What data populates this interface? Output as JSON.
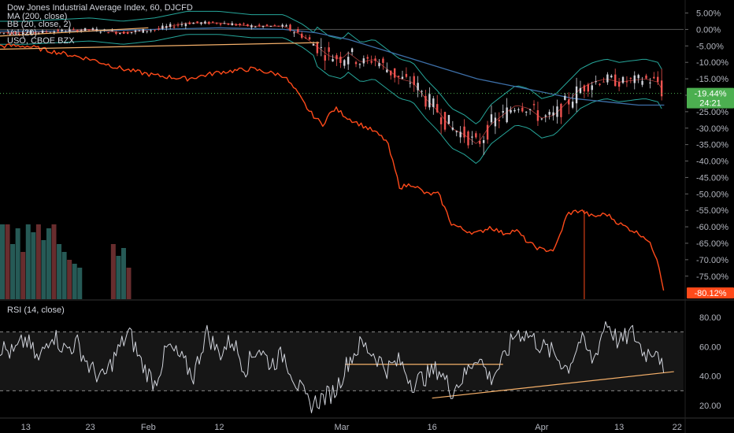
{
  "legend": {
    "title": "Dow Jones Industrial Average Index, 60, DJCFD",
    "ma": "MA (200, close)",
    "bb": "BB (20, close, 2)",
    "vol": "Vol (20)",
    "compare": "USO, CBOE BZX",
    "rsi": "RSI (14, close)"
  },
  "colors": {
    "background": "#000000",
    "up_candle": "#d1d4dc",
    "down_candle": "#ef5350",
    "ma": "#3d6fa8",
    "bollinger": "#26a69a",
    "uso": "#ff4a1a",
    "trendline": "#f5b06a",
    "rsi": "#d1d4dc",
    "dji_tag": "#4caf50",
    "uso_tag": "#ff4a1a"
  },
  "price_tags": {
    "dji_last": "-19.44%",
    "countdown": "24:21",
    "uso_last": "-80.12%"
  },
  "chart_data": [
    {
      "type": "line",
      "name": "price-comparison",
      "title": "Dow Jones Industrial Average Index, 60, DJCFD",
      "y_ticks": [
        "5.00%",
        "0.00%",
        "-5.00%",
        "-10.00%",
        "-15.00%",
        "-20.00%",
        "-25.00%",
        "-30.00%",
        "-35.00%",
        "-40.00%",
        "-45.00%",
        "-50.00%",
        "-55.00%",
        "-60.00%",
        "-65.00%",
        "-70.00%",
        "-75.00%"
      ],
      "y_values": [
        5,
        0,
        -5,
        -10,
        -15,
        -20,
        -25,
        -30,
        -35,
        -40,
        -45,
        -50,
        -55,
        -60,
        -65,
        -70,
        -75
      ],
      "ylim": [
        -82,
        8
      ],
      "x_ticks": [
        "13",
        "23",
        "Feb",
        "12",
        "Mar",
        "16",
        "Apr",
        "13",
        "22"
      ],
      "x_tick_days": [
        0,
        10,
        19,
        30,
        49,
        63,
        80,
        92,
        101
      ],
      "xlim": [
        -4,
        102
      ],
      "series": [
        {
          "name": "DJCFD",
          "x": [
            -4,
            0,
            5,
            10,
            15,
            20,
            25,
            30,
            35,
            40,
            43,
            45,
            47,
            49,
            50,
            52,
            54,
            56,
            58,
            60,
            62,
            64,
            66,
            68,
            70,
            72,
            74,
            76,
            78,
            80,
            82,
            84,
            86,
            88,
            90,
            92,
            94,
            96,
            98,
            99
          ],
          "values": [
            -1,
            -1,
            -0.5,
            0,
            -1,
            0,
            2,
            2,
            1,
            1,
            -2,
            -5,
            -8,
            -9,
            -7,
            -10,
            -9,
            -12,
            -15,
            -16,
            -21,
            -25,
            -30,
            -32,
            -35,
            -29,
            -26,
            -23,
            -24,
            -27,
            -26,
            -22,
            -18,
            -16,
            -15,
            -16,
            -15.5,
            -15,
            -16,
            -19.44
          ]
        },
        {
          "name": "USO",
          "x": [
            -4,
            0,
            5,
            10,
            15,
            20,
            25,
            30,
            35,
            40,
            42,
            44,
            46,
            47,
            48,
            50,
            52,
            54,
            56,
            58,
            60,
            62,
            64,
            66,
            68,
            70,
            72,
            74,
            76,
            78,
            80,
            82,
            84,
            86,
            88,
            90,
            92,
            94,
            96,
            97,
            98,
            99
          ],
          "values": [
            -5,
            -5,
            -7,
            -9,
            -12,
            -14,
            -15,
            -13,
            -12,
            -14,
            -19,
            -25,
            -29,
            -26,
            -24,
            -27,
            -29,
            -31,
            -34,
            -48,
            -47,
            -50,
            -50,
            -59,
            -61,
            -62,
            -60,
            -62,
            -61,
            -65,
            -67,
            -67,
            -56,
            -55,
            -57,
            -56,
            -59,
            -61,
            -63,
            -66,
            -70,
            -80.12
          ]
        },
        {
          "name": "MA (200, close)",
          "x": [
            -4,
            10,
            20,
            30,
            40,
            45,
            50,
            55,
            60,
            65,
            70,
            75,
            80,
            85,
            90,
            95,
            99
          ],
          "values": [
            -0.5,
            -0.5,
            0,
            0.5,
            0,
            -1,
            -3,
            -6,
            -9,
            -12,
            -15,
            -17,
            -19,
            -21,
            -22,
            -23,
            -23
          ]
        }
      ]
    },
    {
      "type": "line",
      "name": "RSI",
      "title": "RSI (14, close)",
      "y_ticks": [
        "80.00",
        "60.00",
        "40.00",
        "20.00"
      ],
      "y_values": [
        80,
        60,
        40,
        20
      ],
      "ylim": [
        12,
        88
      ],
      "bands": [
        70,
        30
      ],
      "xlim": [
        -4,
        102
      ],
      "series": [
        {
          "name": "RSI",
          "x": [
            -4,
            -2,
            0,
            2,
            4,
            6,
            8,
            10,
            12,
            14,
            16,
            18,
            20,
            22,
            24,
            26,
            28,
            30,
            32,
            34,
            36,
            38,
            40,
            42,
            44,
            46,
            48,
            50,
            52,
            54,
            56,
            58,
            60,
            62,
            64,
            66,
            68,
            70,
            72,
            74,
            76,
            78,
            80,
            82,
            84,
            86,
            88,
            90,
            92,
            94,
            96,
            98,
            99
          ],
          "values": [
            60,
            55,
            65,
            50,
            70,
            58,
            62,
            45,
            38,
            55,
            70,
            48,
            35,
            60,
            52,
            40,
            70,
            55,
            65,
            45,
            60,
            48,
            55,
            35,
            20,
            25,
            30,
            50,
            62,
            55,
            45,
            50,
            35,
            40,
            45,
            30,
            40,
            55,
            38,
            50,
            70,
            68,
            60,
            55,
            45,
            65,
            50,
            78,
            62,
            70,
            55,
            60,
            37
          ]
        }
      ]
    }
  ]
}
